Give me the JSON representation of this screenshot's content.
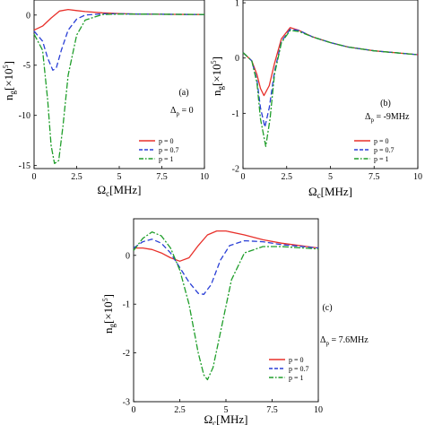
{
  "chart_data": [
    {
      "type": "line",
      "panel_label": "(a)",
      "annotation": "Δ",
      "annotation_sub": "p",
      "annotation_value": " = 0",
      "xlabel": "Ω",
      "xlabel_sub": "c",
      "xlabel_unit": "[MHz]",
      "ylabel": "n",
      "ylabel_sub": "g",
      "ylabel_unit": "[×10",
      "ylabel_exp": "5",
      "ylabel_close": "]",
      "xlim": [
        0,
        10
      ],
      "ylim": [
        -15.3,
        1.5
      ],
      "xticks": [
        "0",
        "2.5",
        "5",
        "7.5",
        "10"
      ],
      "yticks": [
        "-15",
        "-10",
        "-5",
        "0"
      ],
      "ytick_values": [
        -15,
        -10,
        -5,
        0
      ],
      "xtick_values": [
        0,
        2.5,
        5,
        7.5,
        10
      ],
      "legend_position": "bottom-right",
      "series": [
        {
          "name": "p = 0",
          "color": "#e8302a",
          "dash": "solid",
          "x": [
            0,
            0.5,
            1,
            1.5,
            2,
            2.5,
            3,
            4,
            5,
            6,
            8,
            10
          ],
          "y": [
            -1.5,
            -1.1,
            -0.3,
            0.4,
            0.55,
            0.45,
            0.35,
            0.22,
            0.15,
            0.1,
            0.07,
            0.05
          ]
        },
        {
          "name": "p = 0.7",
          "color": "#2a3fd6",
          "dash": "dash",
          "x": [
            0,
            0.5,
            0.8,
            1.1,
            1.3,
            1.6,
            2,
            2.5,
            3,
            4,
            5,
            7.5,
            10
          ],
          "y": [
            -1.6,
            -2.6,
            -4.3,
            -5.5,
            -5.3,
            -3.5,
            -1.5,
            -0.4,
            0.0,
            0.12,
            0.12,
            0.08,
            0.05
          ]
        },
        {
          "name": "p = 1",
          "color": "#1f9e2a",
          "dash": "dashdot",
          "x": [
            0,
            0.5,
            0.8,
            1.0,
            1.2,
            1.45,
            1.7,
            2.0,
            2.5,
            3,
            4,
            5,
            7.5,
            10
          ],
          "y": [
            -1.9,
            -3.5,
            -8.5,
            -13.0,
            -14.8,
            -14.5,
            -11.0,
            -6.0,
            -2.0,
            -0.5,
            0.05,
            0.1,
            0.08,
            0.05
          ]
        }
      ]
    },
    {
      "type": "line",
      "panel_label": "(b)",
      "annotation": "Δ",
      "annotation_sub": "p",
      "annotation_value": " = -9MHz",
      "xlabel": "Ω",
      "xlabel_sub": "c",
      "xlabel_unit": "[MHz]",
      "ylabel": "n",
      "ylabel_sub": "g",
      "ylabel_unit": "[×10",
      "ylabel_exp": "5",
      "ylabel_close": "]",
      "xlim": [
        0,
        10
      ],
      "ylim": [
        -2.0,
        1.05
      ],
      "xticks": [
        "0",
        "2.5",
        "5",
        "7.5",
        "10"
      ],
      "yticks": [
        "-2",
        "-1",
        "0",
        "1"
      ],
      "ytick_values": [
        -2,
        -1,
        0,
        1
      ],
      "xtick_values": [
        0,
        2.5,
        5,
        7.5,
        10
      ],
      "legend_position": "bottom-right",
      "series": [
        {
          "name": "p = 0",
          "color": "#e8302a",
          "dash": "solid",
          "x": [
            0,
            0.5,
            0.8,
            1.0,
            1.2,
            1.5,
            1.8,
            2.2,
            2.7,
            3.2,
            4,
            5,
            6,
            7.5,
            10
          ],
          "y": [
            0.1,
            -0.05,
            -0.3,
            -0.55,
            -0.68,
            -0.5,
            -0.1,
            0.35,
            0.55,
            0.5,
            0.38,
            0.28,
            0.2,
            0.13,
            0.06
          ]
        },
        {
          "name": "p = 0.7",
          "color": "#2a3fd6",
          "dash": "dash",
          "x": [
            0,
            0.5,
            0.8,
            1.0,
            1.25,
            1.5,
            1.8,
            2.2,
            2.7,
            3.2,
            4,
            5,
            6,
            7.5,
            10
          ],
          "y": [
            0.1,
            -0.05,
            -0.4,
            -0.9,
            -1.25,
            -0.9,
            -0.25,
            0.3,
            0.52,
            0.5,
            0.38,
            0.28,
            0.2,
            0.13,
            0.06
          ]
        },
        {
          "name": "p = 1",
          "color": "#1f9e2a",
          "dash": "dashdot",
          "x": [
            0,
            0.5,
            0.8,
            1.0,
            1.3,
            1.55,
            1.8,
            2.2,
            2.7,
            3.2,
            4,
            5,
            6,
            7.5,
            10
          ],
          "y": [
            0.1,
            -0.05,
            -0.45,
            -1.1,
            -1.6,
            -1.1,
            -0.3,
            0.28,
            0.5,
            0.48,
            0.38,
            0.28,
            0.2,
            0.13,
            0.06
          ]
        }
      ]
    },
    {
      "type": "line",
      "panel_label": "(c)",
      "annotation": "Δ",
      "annotation_sub": "p",
      "annotation_value": " = 7.6MHz",
      "xlabel": "Ω",
      "xlabel_sub": "c",
      "xlabel_unit": "[MHz]",
      "ylabel": "n",
      "ylabel_sub": "g",
      "ylabel_unit": "[×10",
      "ylabel_exp": "5",
      "ylabel_close": "]",
      "xlim": [
        0,
        10
      ],
      "ylim": [
        -3.0,
        0.75
      ],
      "xticks": [
        "0",
        "2.5",
        "5",
        "7.5",
        "10"
      ],
      "yticks": [
        "-3",
        "-2",
        "-1",
        "0"
      ],
      "ytick_values": [
        -3,
        -2,
        -1,
        0
      ],
      "xtick_values": [
        0,
        2.5,
        5,
        7.5,
        10
      ],
      "legend_position": "bottom-right",
      "series": [
        {
          "name": "p = 0",
          "color": "#e8302a",
          "dash": "solid",
          "x": [
            0,
            0.5,
            1,
            1.5,
            2,
            2.5,
            3,
            3.5,
            4,
            4.5,
            5,
            6,
            7,
            8,
            9,
            10
          ],
          "y": [
            0.15,
            0.15,
            0.12,
            0.05,
            -0.05,
            -0.12,
            -0.05,
            0.2,
            0.42,
            0.5,
            0.5,
            0.42,
            0.32,
            0.25,
            0.2,
            0.15
          ]
        },
        {
          "name": "p = 0.7",
          "color": "#2a3fd6",
          "dash": "dash",
          "x": [
            0,
            0.5,
            1,
            1.5,
            2,
            2.5,
            3,
            3.5,
            3.8,
            4.2,
            4.7,
            5.2,
            6,
            7,
            8,
            10
          ],
          "y": [
            0.15,
            0.28,
            0.33,
            0.25,
            0.05,
            -0.25,
            -0.55,
            -0.78,
            -0.8,
            -0.6,
            -0.1,
            0.2,
            0.3,
            0.28,
            0.22,
            0.15
          ]
        },
        {
          "name": "p = 1",
          "color": "#1f9e2a",
          "dash": "dashdot",
          "x": [
            0,
            0.5,
            1,
            1.5,
            2,
            2.5,
            3,
            3.5,
            3.8,
            4.0,
            4.3,
            4.8,
            5.3,
            6,
            7,
            8,
            10
          ],
          "y": [
            0.1,
            0.35,
            0.48,
            0.4,
            0.15,
            -0.3,
            -1.0,
            -2.0,
            -2.45,
            -2.55,
            -2.3,
            -1.4,
            -0.5,
            0.05,
            0.18,
            0.18,
            0.13
          ]
        }
      ]
    }
  ]
}
